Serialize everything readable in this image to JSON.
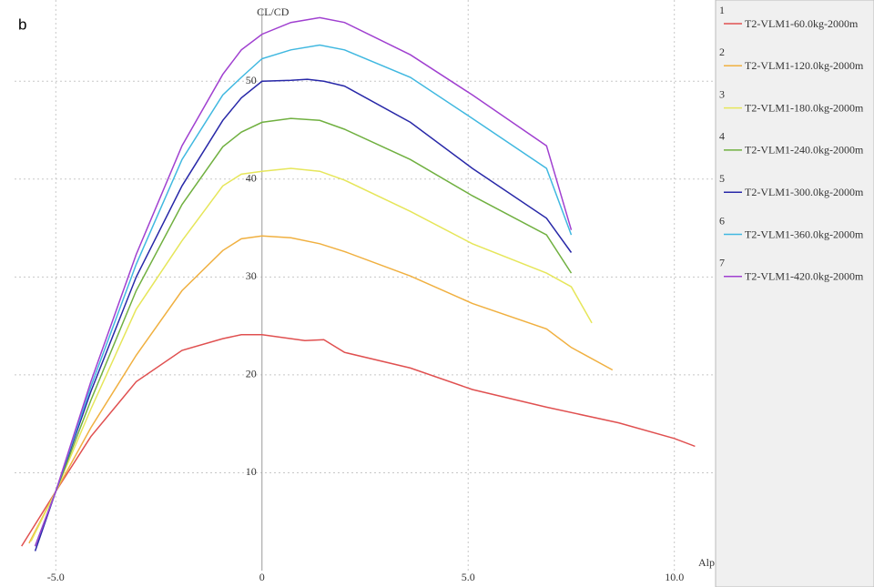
{
  "chart_data": {
    "type": "line",
    "panel_label": "b",
    "y_label": "CL/CD",
    "x_label": "Alp",
    "xlim": [
      -6,
      11
    ],
    "ylim": [
      0,
      58.3
    ],
    "xticks": [
      {
        "value": -5,
        "label": "-5.0"
      },
      0,
      {
        "value": 5,
        "label": "5.0"
      },
      {
        "value": 10,
        "label": "10.0"
      }
    ],
    "yticks": [
      10,
      20,
      30,
      40,
      50
    ],
    "grid": true,
    "series": [
      {
        "number": "1",
        "name": "T2-VLM1-60.0kg-2000m",
        "color": "#e05050",
        "x": [
          -5.83,
          -5,
          -4.15,
          -3.05,
          -1.94,
          -0.95,
          -0.5,
          0,
          0.7,
          1.04,
          1.5,
          2.0,
          3.6,
          5.1,
          6.9,
          8.65,
          10,
          10.5
        ],
        "values": [
          2.5,
          8.1,
          13.7,
          19.3,
          22.5,
          23.7,
          24.1,
          24.1,
          23.7,
          23.5,
          23.6,
          22.3,
          20.7,
          18.5,
          16.7,
          15.1,
          13.5,
          12.7
        ]
      },
      {
        "number": "2",
        "name": "T2-VLM1-120.0kg-2000m",
        "color": "#f0b040",
        "x": [
          -5.65,
          -5,
          -4.15,
          -3.05,
          -1.94,
          -0.95,
          -0.5,
          0,
          0.7,
          1.4,
          2.0,
          3.6,
          5.1,
          6.9,
          7.5,
          8.5
        ],
        "values": [
          2.8,
          8.1,
          14.6,
          22,
          28.6,
          32.7,
          33.9,
          34.2,
          34,
          33.4,
          32.6,
          30.1,
          27.3,
          24.7,
          22.8,
          20.5
        ]
      },
      {
        "number": "3",
        "name": "T2-VLM1-180.0kg-2000m",
        "color": "#e6e65a",
        "x": [
          -5.6,
          -5,
          -4.15,
          -3.05,
          -1.94,
          -0.95,
          -0.5,
          0,
          0.7,
          1.4,
          2.0,
          3.6,
          5.1,
          6.9,
          7.5,
          8
        ],
        "values": [
          3,
          8.1,
          16.5,
          26.7,
          33.7,
          39.3,
          40.5,
          40.8,
          41.1,
          40.8,
          39.9,
          36.7,
          33.4,
          30.4,
          29,
          25.3
        ]
      },
      {
        "number": "4",
        "name": "T2-VLM1-240.0kg-2000m",
        "color": "#70b040",
        "x": [
          -5.5,
          -5,
          -4.15,
          -3.05,
          -1.94,
          -0.95,
          -0.5,
          0,
          0.7,
          1.4,
          2.0,
          3.6,
          5.1,
          6.9,
          7.5
        ],
        "values": [
          2.5,
          8.1,
          17.4,
          28.6,
          37.4,
          43.3,
          44.8,
          45.8,
          46.2,
          46,
          45.1,
          42,
          38.3,
          34.3,
          30.4
        ]
      },
      {
        "number": "5",
        "name": "T2-VLM1-300.0kg-2000m",
        "color": "#2828a8",
        "x": [
          -5.5,
          -5,
          -4.15,
          -3.05,
          -1.94,
          -0.95,
          -0.5,
          0,
          0.7,
          1.1,
          1.5,
          2.0,
          3.6,
          5.1,
          6.9,
          7.5
        ],
        "values": [
          2,
          8.1,
          18.3,
          30,
          39.3,
          46,
          48.3,
          50,
          50.1,
          50.2,
          50,
          49.5,
          45.8,
          41.1,
          36,
          32.5
        ]
      },
      {
        "number": "6",
        "name": "T2-VLM1-360.0kg-2000m",
        "color": "#40b8e0",
        "x": [
          -5.5,
          -5,
          -4.15,
          -3.05,
          -1.94,
          -0.95,
          -0.5,
          0,
          0.7,
          1.4,
          2.0,
          3.6,
          5.1,
          6.9,
          7.5
        ],
        "values": [
          2.5,
          8.1,
          18.8,
          31.3,
          42,
          48.6,
          50.4,
          52.3,
          53.2,
          53.7,
          53.2,
          50.4,
          46.2,
          41.1,
          34.3
        ]
      },
      {
        "number": "7",
        "name": "T2-VLM1-420.0kg-2000m",
        "color": "#a040d0",
        "x": [
          -5.5,
          -5,
          -4.15,
          -3.05,
          -1.94,
          -0.95,
          -0.5,
          0,
          0.7,
          1.4,
          2.0,
          3.6,
          5.1,
          6.9,
          7.5
        ],
        "values": [
          2.5,
          8.1,
          19.3,
          32.3,
          43.4,
          50.7,
          53.2,
          54.8,
          56,
          56.5,
          56,
          52.7,
          48.6,
          43.4,
          34.8
        ]
      }
    ]
  }
}
